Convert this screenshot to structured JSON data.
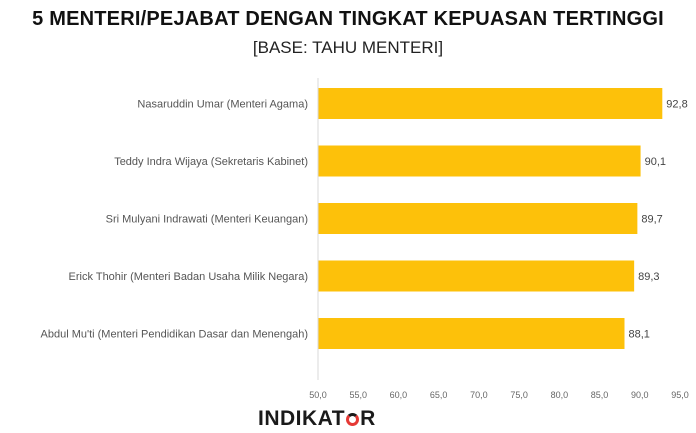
{
  "chart_data": {
    "type": "bar",
    "orientation": "horizontal",
    "title": "5 MENTERI/PEJABAT DENGAN TINGKAT KEPUASAN TERTINGGI",
    "subtitle": "[BASE: TAHU MENTERI]",
    "categories": [
      "Nasaruddin Umar (Menteri Agama)",
      "Teddy Indra Wijaya (Sekretaris Kabinet)",
      "Sri Mulyani Indrawati (Menteri Keuangan)",
      "Erick Thohir (Menteri Badan Usaha Milik Negara)",
      "Abdul Mu'ti (Menteri Pendidikan Dasar dan Menengah)"
    ],
    "values": [
      92.8,
      90.1,
      89.7,
      89.3,
      88.1
    ],
    "value_labels": [
      "92,8",
      "90,1",
      "89,7",
      "89,3",
      "88,1"
    ],
    "xlim": [
      50,
      95
    ],
    "xticks": [
      50,
      55,
      60,
      65,
      70,
      75,
      80,
      85,
      90,
      95
    ],
    "xtick_labels": [
      "50,0",
      "55,0",
      "60,0",
      "65,0",
      "70,0",
      "75,0",
      "80,0",
      "85,0",
      "90,0",
      "95,0"
    ],
    "bar_color": "#FDC10A",
    "grid": false,
    "legend": "none"
  },
  "logo": {
    "text_before": "INDIKAT",
    "text_after": "R"
  }
}
